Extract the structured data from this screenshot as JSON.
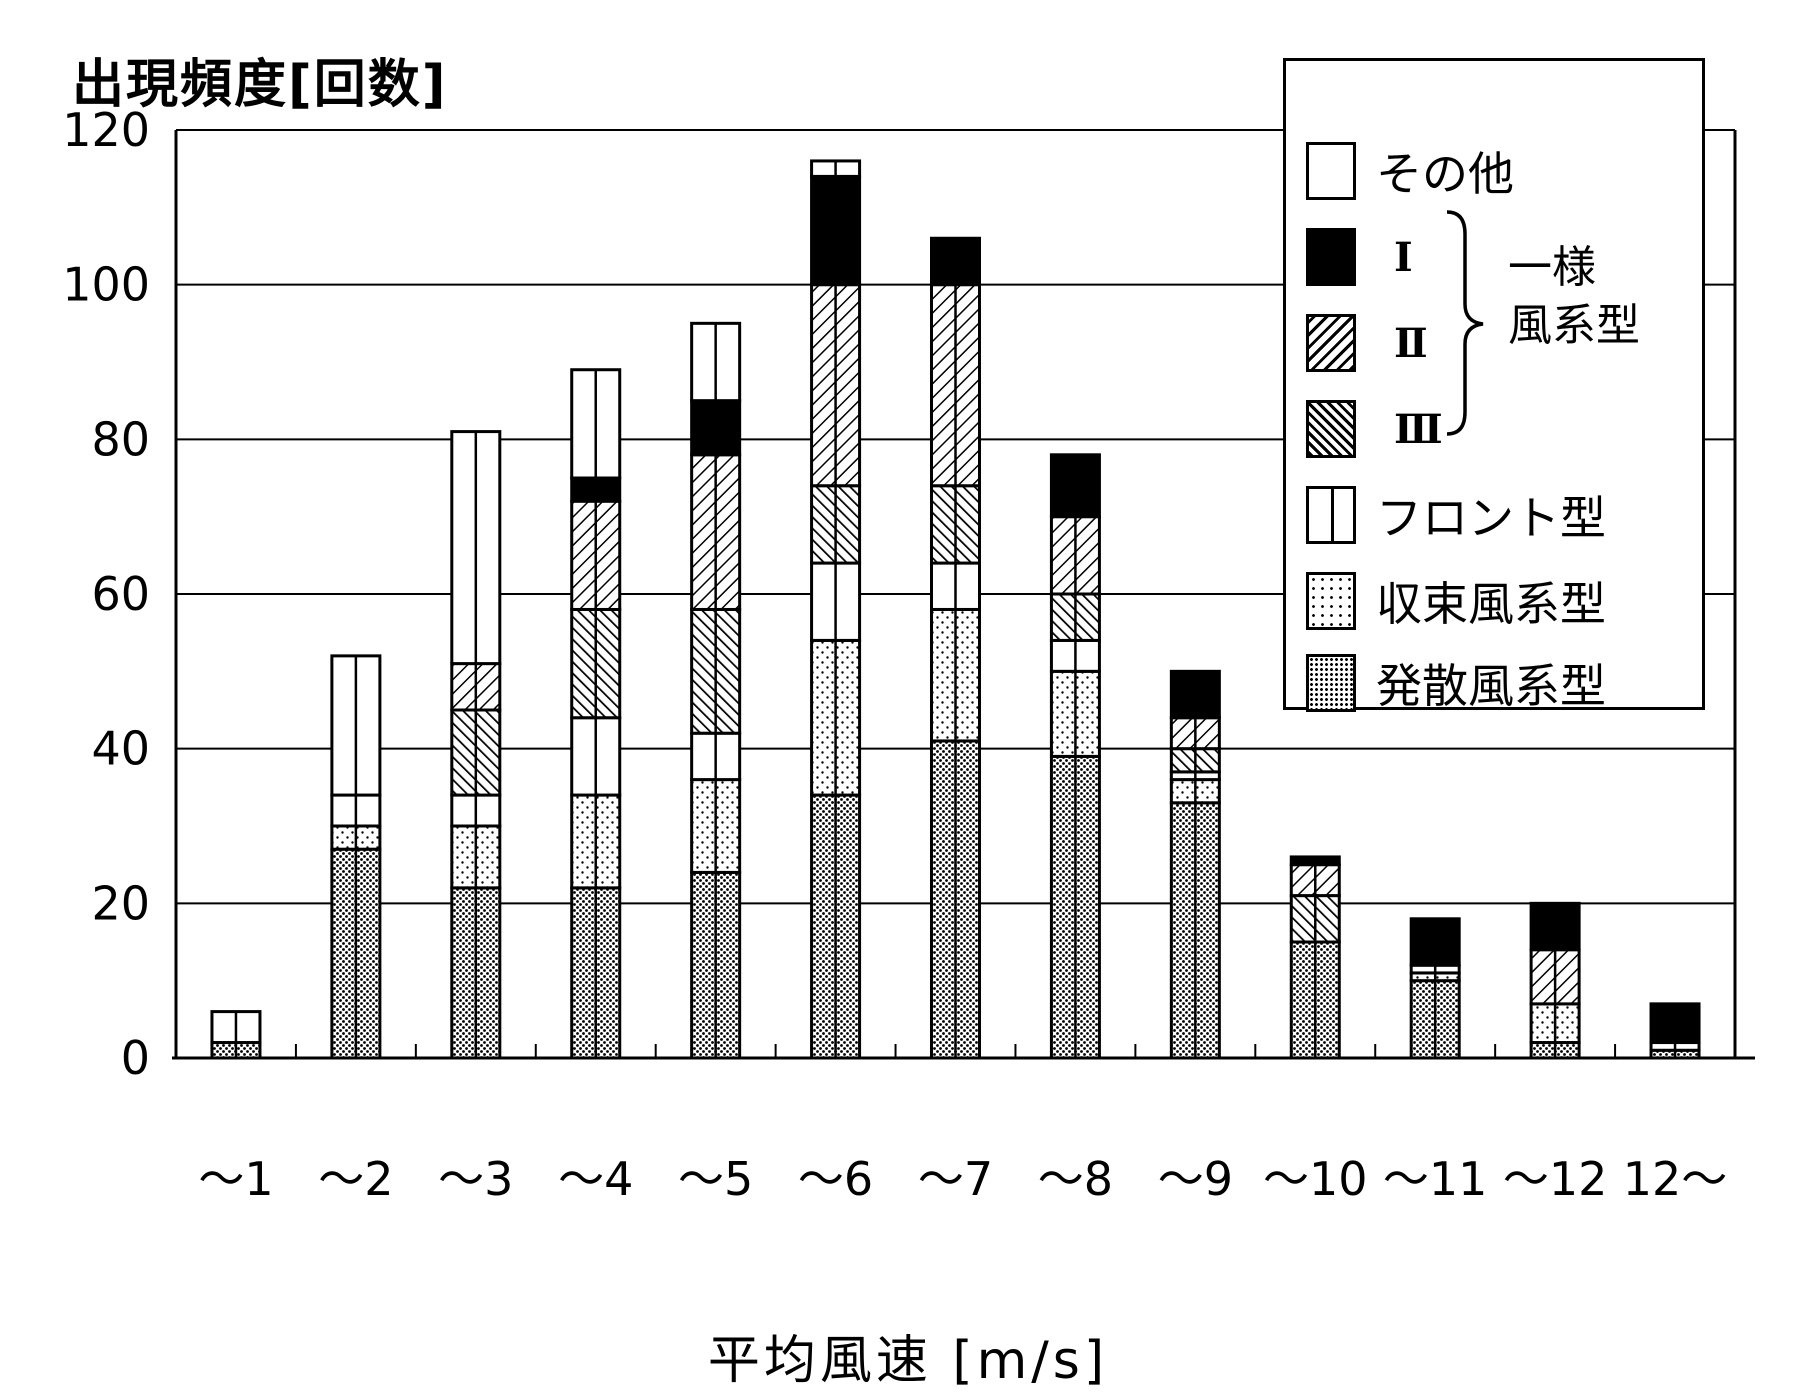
{
  "chart_data": {
    "type": "bar",
    "stacked": true,
    "ylabel": "出現頻度[回数]",
    "xlabel": "平均風速 [m/s]",
    "ylim": [
      0,
      120
    ],
    "yticks": [
      0,
      20,
      40,
      60,
      80,
      100,
      120
    ],
    "grid": "horizontal",
    "legend_position": "top-right",
    "categories": [
      "～1",
      "～2",
      "～3",
      "～4",
      "～5",
      "～6",
      "～7",
      "～8",
      "～9",
      "～10",
      "～11",
      "～12",
      "12～"
    ],
    "series": [
      {
        "name": "発散風系型",
        "pattern": "dense-dots",
        "values": [
          2,
          27,
          22,
          22,
          24,
          34,
          41,
          39,
          33,
          15,
          10,
          2,
          1
        ]
      },
      {
        "name": "収束風系型",
        "pattern": "sparse-dots",
        "values": [
          0,
          3,
          8,
          12,
          12,
          20,
          17,
          11,
          3,
          0,
          1,
          5,
          0
        ]
      },
      {
        "name": "フロント型",
        "pattern": "blank-divided",
        "values": [
          0,
          4,
          4,
          10,
          6,
          10,
          6,
          4,
          1,
          0,
          1,
          0,
          1
        ]
      },
      {
        "name": "Ⅲ",
        "pattern": "backslash-hatch",
        "values": [
          0,
          0,
          11,
          14,
          16,
          10,
          10,
          6,
          3,
          6,
          0,
          0,
          0
        ]
      },
      {
        "name": "Ⅱ",
        "pattern": "slash-hatch",
        "values": [
          0,
          0,
          6,
          14,
          20,
          26,
          26,
          10,
          4,
          4,
          0,
          7,
          0
        ]
      },
      {
        "name": "Ⅰ",
        "pattern": "solid-black",
        "values": [
          0,
          0,
          0,
          3,
          7,
          14,
          6,
          8,
          6,
          1,
          6,
          6,
          5
        ]
      },
      {
        "name": "その他",
        "pattern": "blank",
        "values": [
          4,
          18,
          30,
          14,
          10,
          2,
          0,
          0,
          0,
          0,
          0,
          0,
          0
        ]
      }
    ]
  },
  "legend": {
    "group_label_line1": "一様",
    "group_label_line2": "風系型"
  },
  "colors": {
    "ink": "#000000",
    "background": "#ffffff",
    "grid": "#000000"
  }
}
